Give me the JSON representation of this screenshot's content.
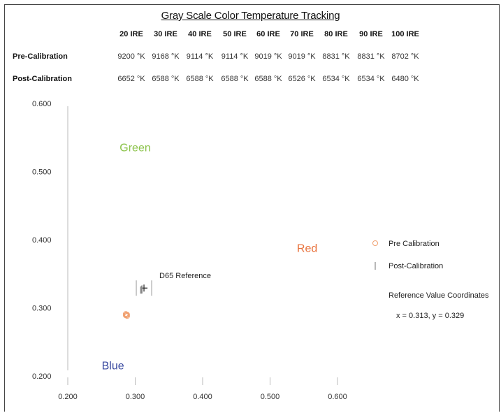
{
  "chart_data": {
    "type": "scatter",
    "title": "Gray Scale Color Temperature Tracking",
    "table": {
      "columns": [
        "20 IRE",
        "30 IRE",
        "40 IRE",
        "50 IRE",
        "60 IRE",
        "70 IRE",
        "80 IRE",
        "90 IRE",
        "100 IRE"
      ],
      "rows": [
        {
          "label": "Pre-Calibration",
          "values": [
            "9200 °K",
            "9168 °K",
            "9114 °K",
            "9114 °K",
            "9019 °K",
            "9019 °K",
            "8831 °K",
            "8831 °K",
            "8702 °K"
          ]
        },
        {
          "label": "Post-Calibration",
          "values": [
            "6652 °K",
            "6588 °K",
            "6588 °K",
            "6588 °K",
            "6588 °K",
            "6526 °K",
            "6534 °K",
            "6534 °K",
            "6480 °K"
          ]
        }
      ]
    },
    "xlim": [
      0.2,
      0.6
    ],
    "ylim": [
      0.2,
      0.6
    ],
    "x_ticks": [
      "0.200",
      "0.300",
      "0.400",
      "0.500",
      "0.600"
    ],
    "y_ticks": [
      "0.600",
      "0.500",
      "0.400",
      "0.300",
      "0.200"
    ],
    "region_labels": [
      {
        "text": "Green",
        "x": 0.3,
        "y": 0.53,
        "color": "#8bc34a"
      },
      {
        "text": "Red",
        "x": 0.555,
        "y": 0.382,
        "color": "#e8703a"
      },
      {
        "text": "Blue",
        "x": 0.267,
        "y": 0.21,
        "color": "#3a4aa0"
      }
    ],
    "reference": {
      "label": "D65 Reference",
      "x": 0.313,
      "y": 0.329
    },
    "series": [
      {
        "name": "Pre Calibration",
        "marker": "circle",
        "color": "#f0a070",
        "points": [
          [
            0.286,
            0.289
          ],
          [
            0.287,
            0.29
          ],
          [
            0.288,
            0.29
          ],
          [
            0.286,
            0.291
          ],
          [
            0.288,
            0.288
          ],
          [
            0.287,
            0.289
          ]
        ]
      },
      {
        "name": "Post-Calibration",
        "marker": "vline",
        "color": "#888888",
        "points": [
          [
            0.308,
            0.326
          ],
          [
            0.309,
            0.326
          ],
          [
            0.31,
            0.327
          ],
          [
            0.309,
            0.327
          ],
          [
            0.31,
            0.328
          ],
          [
            0.31,
            0.326
          ]
        ]
      }
    ],
    "legend": {
      "placement": "right",
      "items": [
        {
          "label": "Pre Calibration",
          "marker": "circle",
          "color": "#f0a070"
        },
        {
          "label": "Post-Calibration",
          "marker": "vline",
          "color": "#888888"
        }
      ],
      "note_title": "Reference Value Coordinates",
      "note_value": "x = 0.313, y = 0.329"
    }
  }
}
